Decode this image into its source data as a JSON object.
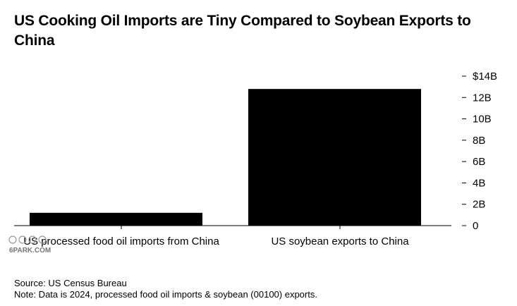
{
  "title": "US Cooking Oil Imports are Tiny Compared to Soybean Exports to China",
  "source": "Source: US Census Bureau",
  "note": "Note: Data is 2024, processed food oil imports & soybean (00100) exports.",
  "watermark": "6PARK.COM",
  "colors": {
    "bar": "#000000",
    "axis": "#000000",
    "background": "#ffffff"
  },
  "chart_data": {
    "type": "bar",
    "categories": [
      "US processed food oil imports from China",
      "US soybean exports to China"
    ],
    "values": [
      1.2,
      12.8
    ],
    "y_ticks": [
      0,
      2,
      4,
      6,
      8,
      10,
      12,
      14
    ],
    "y_tick_labels": [
      "0",
      "2B",
      "4B",
      "6B",
      "8B",
      "10B",
      "12B",
      "$14B"
    ],
    "ylim": [
      0,
      14
    ],
    "y_axis_side": "right",
    "grid": false,
    "legend": false
  }
}
